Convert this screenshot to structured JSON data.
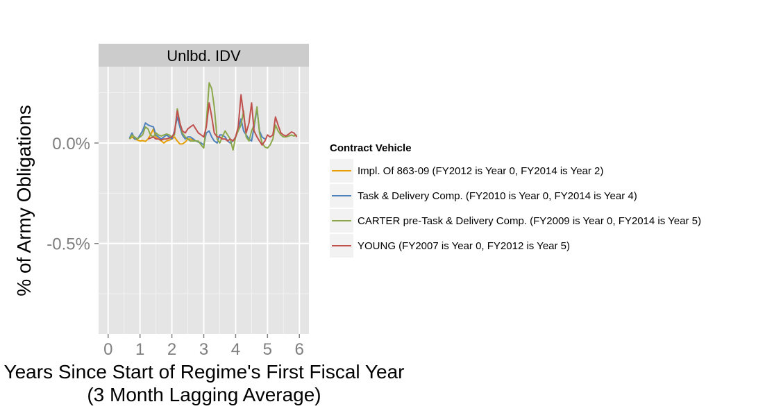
{
  "chart_data": {
    "type": "line",
    "facet": "Unlbd. IDV",
    "xlabel": "Years Since Start of Regime's First Fiscal Year",
    "xlabel2": "(3 Month Lagging Average)",
    "ylabel": "% of Army Obligations",
    "xlim": [
      -0.3,
      6.3
    ],
    "ylim": [
      -0.95,
      0.38
    ],
    "x_ticks": [
      0,
      1,
      2,
      3,
      4,
      5,
      6
    ],
    "x_tick_labels": [
      "0",
      "1",
      "2",
      "3",
      "4",
      "5",
      "6"
    ],
    "y_ticks": [
      0,
      -0.5
    ],
    "y_tick_labels": [
      "0.0%",
      "-0.5%"
    ],
    "grid": true,
    "legend": {
      "title": "Contract Vehicle",
      "position": "right"
    },
    "series": [
      {
        "name": "Impl. Of 863-09 (FY2012 is Year 0, FY2014 is Year 2)",
        "color": "#E69F00",
        "points": [
          [
            0.67,
            0.02
          ],
          [
            0.75,
            0.03
          ],
          [
            0.83,
            0.02
          ],
          [
            0.92,
            0.015
          ],
          [
            1.0,
            0.01
          ],
          [
            1.08,
            0.012
          ],
          [
            1.17,
            0.008
          ],
          [
            1.25,
            0.02
          ],
          [
            1.33,
            0.04
          ],
          [
            1.42,
            0.07
          ],
          [
            1.5,
            0.03
          ],
          [
            1.58,
            0.02
          ],
          [
            1.67,
            0.01
          ],
          [
            1.75,
            0.0
          ],
          [
            1.83,
            0.01
          ],
          [
            1.92,
            0.015
          ],
          [
            2.0,
            0.02
          ],
          [
            2.08,
            0.03
          ],
          [
            2.17,
            0.01
          ],
          [
            2.25,
            -0.005
          ],
          [
            2.33,
            -0.005
          ],
          [
            2.42,
            0.005
          ],
          [
            2.5,
            0.02
          ],
          [
            2.58,
            0.02
          ],
          [
            2.67,
            0.015
          ],
          [
            2.75,
            0.01
          ],
          [
            2.83,
            0.005
          ],
          [
            2.92,
            0.0
          ]
        ]
      },
      {
        "name": "Task & Delivery Comp. (FY2010 is Year 0, FY2014 is Year 4)",
        "color": "#4F81BD",
        "points": [
          [
            0.67,
            0.025
          ],
          [
            0.75,
            0.05
          ],
          [
            0.83,
            0.02
          ],
          [
            0.92,
            0.02
          ],
          [
            1.0,
            0.04
          ],
          [
            1.08,
            0.06
          ],
          [
            1.17,
            0.1
          ],
          [
            1.25,
            0.09
          ],
          [
            1.33,
            0.085
          ],
          [
            1.42,
            0.08
          ],
          [
            1.5,
            0.04
          ],
          [
            1.58,
            0.03
          ],
          [
            1.67,
            0.02
          ],
          [
            1.75,
            0.03
          ],
          [
            1.83,
            0.04
          ],
          [
            1.92,
            0.03
          ],
          [
            2.0,
            0.02
          ],
          [
            2.08,
            0.06
          ],
          [
            2.17,
            0.13
          ],
          [
            2.25,
            0.08
          ],
          [
            2.33,
            0.04
          ],
          [
            2.42,
            0.02
          ],
          [
            2.5,
            0.03
          ],
          [
            2.58,
            0.03
          ],
          [
            2.67,
            0.02
          ],
          [
            2.75,
            0.01
          ],
          [
            2.83,
            0.005
          ],
          [
            2.92,
            0.0
          ],
          [
            3.0,
            -0.01
          ],
          [
            3.08,
            0.05
          ],
          [
            3.17,
            0.06
          ],
          [
            3.25,
            0.03
          ],
          [
            3.33,
            0.01
          ],
          [
            3.42,
            0.0
          ],
          [
            3.5,
            0.04
          ],
          [
            3.58,
            0.04
          ],
          [
            3.67,
            0.03
          ],
          [
            3.75,
            0.01
          ],
          [
            3.83,
            0.0
          ],
          [
            3.92,
            0.01
          ],
          [
            4.0,
            0.03
          ],
          [
            4.08,
            0.07
          ],
          [
            4.17,
            0.12
          ],
          [
            4.25,
            0.06
          ],
          [
            4.33,
            0.04
          ],
          [
            4.42,
            0.02
          ],
          [
            4.5,
            0.01
          ],
          [
            4.58,
            0.08
          ],
          [
            4.67,
            0.17
          ],
          [
            4.75,
            0.06
          ],
          [
            4.83,
            0.03
          ],
          [
            4.92,
            0.02
          ]
        ]
      },
      {
        "name": "CARTER pre-Task & Delivery Comp. (FY2009 is Year 0, FY2014 is Year 5)",
        "color": "#8BA84A",
        "points": [
          [
            0.67,
            0.02
          ],
          [
            0.75,
            0.04
          ],
          [
            0.83,
            0.03
          ],
          [
            0.92,
            0.02
          ],
          [
            1.0,
            0.03
          ],
          [
            1.08,
            0.04
          ],
          [
            1.17,
            0.08
          ],
          [
            1.25,
            0.07
          ],
          [
            1.33,
            0.04
          ],
          [
            1.42,
            0.03
          ],
          [
            1.5,
            0.05
          ],
          [
            1.58,
            0.04
          ],
          [
            1.67,
            0.035
          ],
          [
            1.75,
            0.04
          ],
          [
            1.83,
            0.045
          ],
          [
            1.92,
            0.04
          ],
          [
            2.0,
            0.03
          ],
          [
            2.08,
            0.04
          ],
          [
            2.17,
            0.17
          ],
          [
            2.25,
            0.1
          ],
          [
            2.33,
            0.05
          ],
          [
            2.42,
            0.03
          ],
          [
            2.5,
            0.02
          ],
          [
            2.58,
            0.01
          ],
          [
            2.67,
            0.01
          ],
          [
            2.75,
            0.01
          ],
          [
            2.83,
            0.01
          ],
          [
            2.92,
            -0.01
          ],
          [
            3.0,
            -0.025
          ],
          [
            3.08,
            0.1
          ],
          [
            3.17,
            0.3
          ],
          [
            3.25,
            0.27
          ],
          [
            3.33,
            0.18
          ],
          [
            3.42,
            0.02
          ],
          [
            3.5,
            0.0
          ],
          [
            3.58,
            0.03
          ],
          [
            3.67,
            0.06
          ],
          [
            3.75,
            0.04
          ],
          [
            3.83,
            0.02
          ],
          [
            3.92,
            -0.035
          ],
          [
            4.0,
            0.03
          ],
          [
            4.08,
            0.06
          ],
          [
            4.17,
            0.09
          ],
          [
            4.25,
            0.16
          ],
          [
            4.33,
            0.03
          ],
          [
            4.42,
            0.01
          ],
          [
            4.5,
            0.06
          ],
          [
            4.58,
            0.09
          ],
          [
            4.67,
            0.18
          ],
          [
            4.75,
            0.05
          ],
          [
            4.83,
            0.0
          ],
          [
            4.92,
            -0.02
          ],
          [
            5.0,
            -0.025
          ],
          [
            5.08,
            -0.01
          ],
          [
            5.17,
            0.02
          ],
          [
            5.25,
            0.09
          ],
          [
            5.33,
            0.06
          ],
          [
            5.42,
            0.04
          ],
          [
            5.5,
            0.03
          ],
          [
            5.58,
            0.03
          ],
          [
            5.67,
            0.035
          ],
          [
            5.75,
            0.04
          ],
          [
            5.83,
            0.035
          ],
          [
            5.92,
            0.04
          ]
        ]
      },
      {
        "name": "YOUNG (FY2007 is Year 0, FY2012 is Year 5)",
        "color": "#C0504D",
        "points": [
          [
            1.25,
            0.02
          ],
          [
            1.33,
            0.025
          ],
          [
            1.42,
            0.03
          ],
          [
            1.5,
            0.02
          ],
          [
            1.58,
            0.02
          ],
          [
            1.67,
            0.015
          ],
          [
            1.75,
            0.02
          ],
          [
            1.83,
            0.02
          ],
          [
            1.92,
            0.025
          ],
          [
            2.0,
            0.03
          ],
          [
            2.08,
            0.05
          ],
          [
            2.17,
            0.16
          ],
          [
            2.25,
            0.1
          ],
          [
            2.33,
            0.06
          ],
          [
            2.42,
            0.05
          ],
          [
            2.5,
            0.07
          ],
          [
            2.58,
            0.08
          ],
          [
            2.67,
            0.09
          ],
          [
            2.75,
            0.07
          ],
          [
            2.83,
            0.05
          ],
          [
            2.92,
            0.04
          ],
          [
            3.0,
            0.03
          ],
          [
            3.08,
            0.08
          ],
          [
            3.17,
            0.2
          ],
          [
            3.25,
            0.13
          ],
          [
            3.33,
            0.05
          ],
          [
            3.42,
            0.03
          ],
          [
            3.5,
            0.03
          ],
          [
            3.58,
            0.02
          ],
          [
            3.67,
            0.02
          ],
          [
            3.75,
            0.01
          ],
          [
            3.83,
            0.02
          ],
          [
            3.92,
            0.01
          ],
          [
            4.0,
            0.03
          ],
          [
            4.08,
            0.08
          ],
          [
            4.17,
            0.24
          ],
          [
            4.25,
            0.14
          ],
          [
            4.33,
            0.05
          ],
          [
            4.42,
            0.1
          ],
          [
            4.5,
            0.2
          ],
          [
            4.58,
            0.06
          ],
          [
            4.67,
            0.03
          ],
          [
            4.75,
            0.01
          ],
          [
            4.83,
            -0.01
          ],
          [
            4.92,
            0.01
          ],
          [
            5.0,
            0.04
          ],
          [
            5.08,
            0.03
          ],
          [
            5.17,
            0.04
          ],
          [
            5.25,
            0.13
          ],
          [
            5.33,
            0.09
          ],
          [
            5.42,
            0.05
          ],
          [
            5.5,
            0.04
          ],
          [
            5.58,
            0.035
          ],
          [
            5.67,
            0.045
          ],
          [
            5.75,
            0.055
          ],
          [
            5.83,
            0.05
          ],
          [
            5.92,
            0.03
          ]
        ]
      }
    ]
  }
}
